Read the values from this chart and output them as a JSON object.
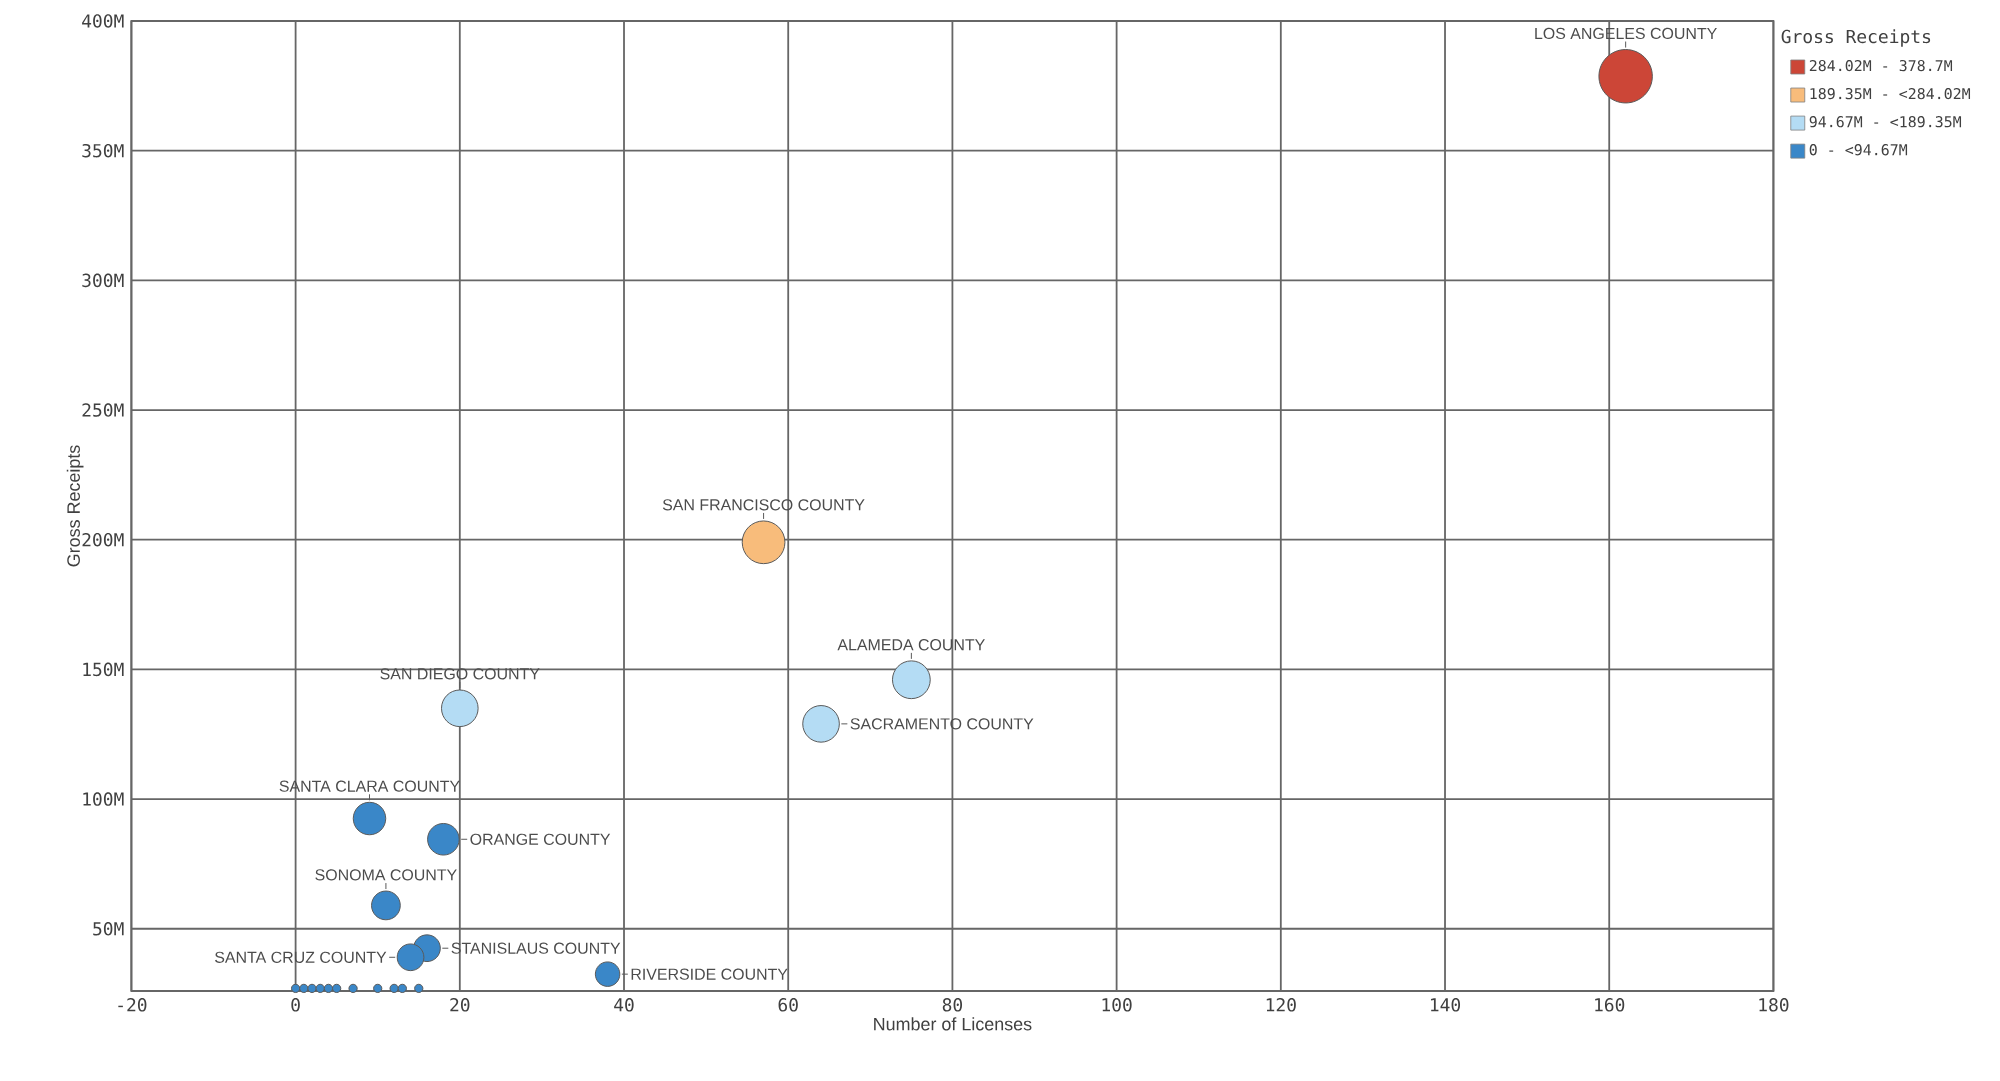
{
  "chart_data": {
    "type": "bubble",
    "xlabel": "Number of Licenses",
    "ylabel": "Gross Receipts",
    "legend_title": "Gross Receipts",
    "xlim": [
      -20,
      180
    ],
    "ylim": [
      26,
      400
    ],
    "xticks": [
      -20,
      0,
      20,
      40,
      60,
      80,
      100,
      120,
      140,
      160,
      180
    ],
    "yticks": [
      {
        "value": 50,
        "label": "50M"
      },
      {
        "value": 100,
        "label": "100M"
      },
      {
        "value": 150,
        "label": "150M"
      },
      {
        "value": 200,
        "label": "200M"
      },
      {
        "value": 250,
        "label": "250M"
      },
      {
        "value": 300,
        "label": "300M"
      },
      {
        "value": 350,
        "label": "350M"
      },
      {
        "value": 400,
        "label": "400M"
      }
    ],
    "grid": true,
    "legend": "top right",
    "marker": "circle",
    "series": [
      {
        "name": "284.02M - 378.7M",
        "color": "#cc4637",
        "x": [
          162
        ],
        "values": [
          378.7
        ],
        "sizes": [
          1
        ]
      },
      {
        "name": "189.35M - <284.02M",
        "color": "#f8bc7b",
        "x": [
          57
        ],
        "values": [
          199
        ],
        "sizes": [
          0.64
        ]
      },
      {
        "name": "94.67M - <189.35M",
        "color": "#b4dcf4",
        "x": [
          75,
          20,
          64
        ],
        "values": [
          146,
          135,
          129
        ],
        "sizes": [
          0.5,
          0.47,
          0.47
        ]
      },
      {
        "name": "0 - <94.67M",
        "color": "#3a87c8",
        "x": [
          9,
          18,
          11,
          16,
          14,
          38,
          0,
          1,
          2,
          3,
          4,
          5,
          7,
          10,
          12,
          13,
          15
        ],
        "values": [
          92.5,
          84.5,
          59,
          42.5,
          39,
          32.5,
          27,
          27,
          27,
          27,
          27,
          27,
          27,
          27,
          27,
          27,
          27
        ],
        "sizes": [
          0.37,
          0.35,
          0.29,
          0.25,
          0.25,
          0.21,
          0.024,
          0.024,
          0.024,
          0.024,
          0.024,
          0.024,
          0.024,
          0.024,
          0.024,
          0.024,
          0.024
        ]
      }
    ],
    "annotations": [
      {
        "text": "LOS ANGELES COUNTY",
        "x": 162,
        "y": 378.7
      },
      {
        "text": "SAN FRANCISCO COUNTY",
        "x": 57,
        "y": 199
      },
      {
        "text": "ALAMEDA COUNTY",
        "x": 75,
        "y": 146
      },
      {
        "text": "SACRAMENTO COUNTY",
        "x": 64,
        "y": 129
      },
      {
        "text": "SAN DIEGO COUNTY",
        "x": 20,
        "y": 135
      },
      {
        "text": "SANTA CLARA COUNTY",
        "x": 9,
        "y": 92.5
      },
      {
        "text": "ORANGE COUNTY",
        "x": 18,
        "y": 84.5
      },
      {
        "text": "SONOMA COUNTY",
        "x": 11,
        "y": 59
      },
      {
        "text": "STANISLAUS COUNTY",
        "x": 16,
        "y": 42.5
      },
      {
        "text": "SANTA CRUZ COUNTY",
        "x": 14,
        "y": 39
      },
      {
        "text": "RIVERSIDE COUNTY",
        "x": 38,
        "y": 32.5
      }
    ]
  }
}
